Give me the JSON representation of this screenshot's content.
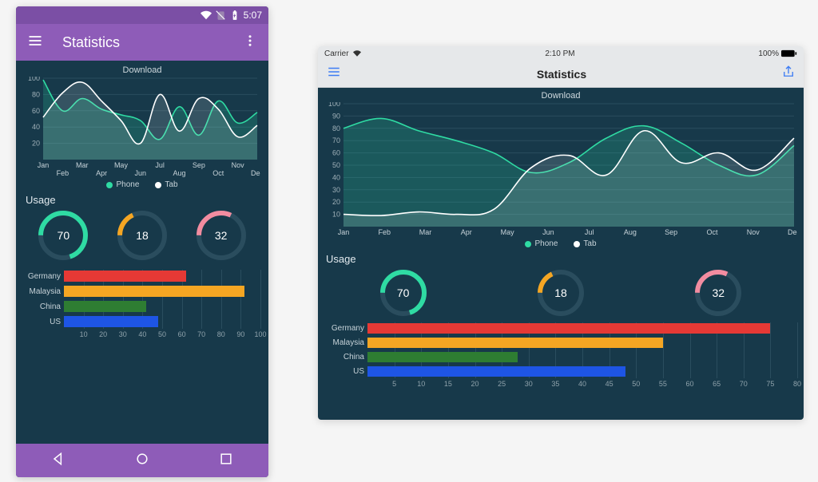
{
  "colors": {
    "bg": "#17394a",
    "gridline": "#2a4d5e",
    "text": "#c7d3d9",
    "android_status": "#7b4fa5",
    "android_bar": "#8e5cb8",
    "ios_bar": "#e6e8ea",
    "ios_accent": "#3d7cf4"
  },
  "phone": {
    "status_time": "5:07",
    "title": "Statistics"
  },
  "tablet": {
    "carrier": "Carrier",
    "time": "2:10 PM",
    "battery": "100%",
    "title": "Statistics"
  },
  "download_chart": {
    "title": "Download",
    "type": "line-area",
    "phone_ylim": [
      0,
      100
    ],
    "phone_yticks": [
      20,
      40,
      60,
      80,
      100
    ],
    "tablet_ylim": [
      0,
      100
    ],
    "tablet_yticks": [
      10,
      20,
      30,
      40,
      50,
      60,
      70,
      80,
      90,
      100
    ],
    "x_labels": [
      "Jan",
      "Feb",
      "Mar",
      "Apr",
      "May",
      "Jun",
      "Jul",
      "Aug",
      "Sep",
      "Oct",
      "Nov",
      "Dec"
    ],
    "series": [
      {
        "name": "Phone",
        "color": "#2fdba3",
        "fill": "#2fdba333",
        "values": [
          98,
          60,
          75,
          62,
          55,
          48,
          25,
          65,
          30,
          72,
          45,
          58
        ]
      },
      {
        "name": "Tab",
        "color": "#ffffff",
        "fill": "#ffffff22",
        "values": [
          52,
          82,
          95,
          72,
          48,
          20,
          80,
          35,
          75,
          62,
          28,
          42
        ]
      }
    ],
    "tablet_series": [
      {
        "name": "Phone",
        "color": "#2fdba3",
        "fill": "#2fdba333",
        "values": [
          80,
          88,
          78,
          70,
          60,
          44,
          52,
          72,
          82,
          68,
          50,
          42,
          66
        ]
      },
      {
        "name": "Tab",
        "color": "#ffffff",
        "fill": "#ffffff22",
        "values": [
          10,
          9,
          12,
          10,
          14,
          48,
          58,
          42,
          78,
          52,
          60,
          46,
          72
        ]
      }
    ],
    "legend": [
      {
        "label": "Phone",
        "color": "#2fdba3"
      },
      {
        "label": "Tab",
        "color": "#ffffff"
      }
    ]
  },
  "usage_label": "Usage",
  "donuts": [
    {
      "value": 70,
      "color": "#2fdba3",
      "track": "#2a4d5e"
    },
    {
      "value": 18,
      "color": "#f5a623",
      "track": "#2a4d5e"
    },
    {
      "value": 32,
      "color": "#f28ca0",
      "track": "#2a4d5e"
    }
  ],
  "hbar_phone": {
    "label_width": 50,
    "xmax": 100,
    "xtick_step": 10,
    "rows": [
      {
        "label": "Germany",
        "value": 62,
        "color": "#e53935"
      },
      {
        "label": "Malaysia",
        "value": 92,
        "color": "#f5a623"
      },
      {
        "label": "China",
        "value": 42,
        "color": "#2e7d32"
      },
      {
        "label": "US",
        "value": 48,
        "color": "#1e55e5"
      }
    ]
  },
  "hbar_tablet": {
    "label_width": 54,
    "xmax": 80,
    "xtick_step": 5,
    "rows": [
      {
        "label": "Germany",
        "value": 75,
        "color": "#e53935"
      },
      {
        "label": "Malaysia",
        "value": 55,
        "color": "#f5a623"
      },
      {
        "label": "China",
        "value": 28,
        "color": "#2e7d32"
      },
      {
        "label": "US",
        "value": 48,
        "color": "#1e55e5"
      }
    ]
  }
}
